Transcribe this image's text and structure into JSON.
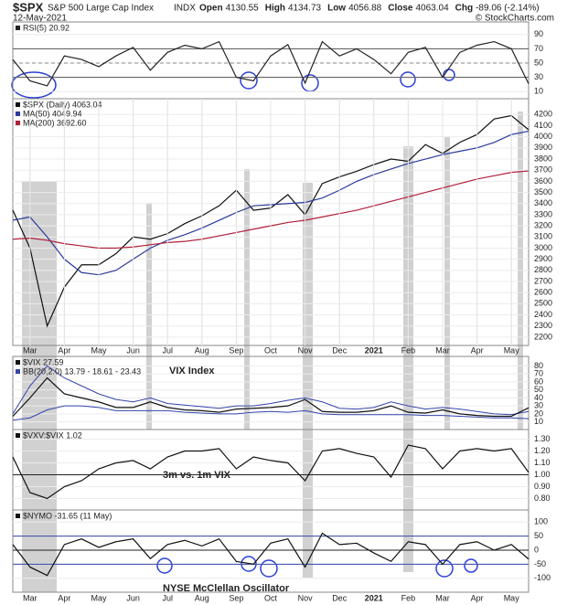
{
  "header": {
    "symbol": "$SPX",
    "name": "S&P 500 Large Cap Index",
    "exchange": "INDX",
    "date": "12-May-2021",
    "credit": "© StockCharts.com",
    "quote": [
      {
        "label": "Open",
        "value": "4130.55"
      },
      {
        "label": "High",
        "value": "4134.73"
      },
      {
        "label": "Low",
        "value": "4056.88"
      },
      {
        "label": "Close",
        "value": "4063.04"
      },
      {
        "label": "Chg",
        "value": "-89.06 (-2.14%)"
      }
    ]
  },
  "chart_data": [
    {
      "type": "line",
      "ylim": [
        0,
        100
      ],
      "yticks": [
        10,
        30,
        50,
        70,
        90
      ],
      "reference_lines": [
        {
          "value": 70,
          "color": "#555555"
        },
        {
          "value": 50,
          "color": "#888888",
          "dashed": true
        },
        {
          "value": 30,
          "color": "#555555"
        }
      ],
      "series": [
        {
          "name": "RSI(5) 20.92",
          "color": "#222222",
          "values": [
            55,
            25,
            18,
            60,
            55,
            45,
            60,
            72,
            40,
            65,
            75,
            70,
            80,
            30,
            25,
            60,
            76,
            22,
            80,
            60,
            70,
            55,
            35,
            65,
            72,
            30,
            65,
            75,
            80,
            70,
            21
          ]
        }
      ]
    },
    {
      "type": "line",
      "ylim": [
        2150,
        4260
      ],
      "yticks": [
        2200,
        2300,
        2400,
        2500,
        2600,
        2700,
        2800,
        2900,
        3000,
        3100,
        3200,
        3300,
        3400,
        3500,
        3600,
        3700,
        3800,
        3900,
        4000,
        4100,
        4200
      ],
      "categories": [
        null,
        "Mar",
        null,
        "Apr",
        null,
        "May",
        null,
        "Jun",
        null,
        "Jul",
        null,
        "Aug",
        null,
        "Sep",
        null,
        "Oct",
        null,
        "Nov",
        null,
        "Dec",
        null,
        "2021",
        null,
        "Feb",
        null,
        "Mar",
        null,
        "Apr",
        null,
        "May",
        null
      ],
      "series": [
        {
          "name": "$SPX (Daily) 4063.04",
          "color": "#111111",
          "values": [
            3340,
            3000,
            2300,
            2650,
            2850,
            2850,
            2950,
            3100,
            3080,
            3130,
            3220,
            3290,
            3380,
            3520,
            3340,
            3360,
            3480,
            3300,
            3580,
            3640,
            3690,
            3750,
            3800,
            3780,
            3930,
            3850,
            3950,
            4020,
            4160,
            4190,
            4063
          ]
        },
        {
          "name": "MA(50) 4049.94",
          "color": "#2a3a9a",
          "values": [
            3250,
            3280,
            3100,
            2900,
            2780,
            2760,
            2800,
            2900,
            3000,
            3070,
            3120,
            3180,
            3250,
            3320,
            3380,
            3390,
            3400,
            3410,
            3450,
            3520,
            3600,
            3660,
            3710,
            3760,
            3800,
            3840,
            3870,
            3900,
            3950,
            4020,
            4050
          ]
        },
        {
          "name": "MA(200) 3692.60",
          "color": "#b0203a",
          "values": [
            3080,
            3090,
            3070,
            3040,
            3020,
            3000,
            3000,
            3010,
            3030,
            3050,
            3060,
            3080,
            3110,
            3140,
            3170,
            3200,
            3230,
            3250,
            3280,
            3310,
            3340,
            3380,
            3420,
            3460,
            3500,
            3540,
            3580,
            3620,
            3650,
            3680,
            3693
          ]
        }
      ]
    },
    {
      "type": "line",
      "ylim": [
        5,
        85
      ],
      "yticks": [
        10,
        20,
        30,
        40,
        50,
        60,
        70,
        80
      ],
      "annotation": "VIX Index",
      "series": [
        {
          "name": "$VIX 27.59",
          "color": "#111111",
          "values": [
            17,
            40,
            65,
            45,
            40,
            35,
            28,
            28,
            35,
            28,
            25,
            24,
            22,
            26,
            27,
            28,
            30,
            38,
            23,
            22,
            22,
            24,
            30,
            22,
            21,
            25,
            20,
            18,
            17,
            17,
            27.6
          ]
        }
      ],
      "bands": {
        "name": "BB(20,2.0) 13.79 - 18.61 - 23.43",
        "color": "#3344aa",
        "upper": [
          20,
          55,
          80,
          65,
          55,
          45,
          38,
          35,
          40,
          33,
          31,
          29,
          27,
          30,
          30,
          33,
          37,
          40,
          35,
          27,
          26,
          28,
          35,
          30,
          26,
          28,
          26,
          23,
          20,
          19,
          23
        ],
        "lower": [
          12,
          15,
          25,
          30,
          30,
          28,
          24,
          24,
          24,
          24,
          22,
          21,
          20,
          20,
          22,
          23,
          22,
          24,
          20,
          19,
          19,
          19,
          19,
          19,
          18,
          18,
          17,
          16,
          15,
          15,
          14
        ]
      }
    },
    {
      "type": "line",
      "ylim": [
        0.75,
        1.35
      ],
      "yticks": [
        {
          "value": 0.8,
          "label": "0.80"
        },
        {
          "value": 0.9,
          "label": "0.90"
        },
        {
          "value": 1.0,
          "label": "1.00"
        },
        {
          "value": 1.1,
          "label": "1.10"
        },
        {
          "value": 1.2,
          "label": "1.20"
        },
        {
          "value": 1.3,
          "label": "1.30"
        }
      ],
      "annotation": "3m vs. 1m VIX",
      "reference_lines": [
        {
          "value": 1.0,
          "color": "#222222"
        }
      ],
      "series": [
        {
          "name": "$VXV:$VIX 1.02",
          "color": "#111111",
          "values": [
            1.15,
            0.85,
            0.8,
            0.9,
            0.95,
            1.05,
            1.1,
            1.12,
            1.05,
            1.15,
            1.2,
            1.2,
            1.22,
            1.05,
            1.15,
            1.12,
            1.1,
            0.95,
            1.2,
            1.22,
            1.18,
            1.15,
            0.98,
            1.25,
            1.22,
            1.05,
            1.2,
            1.22,
            1.2,
            1.22,
            1.02
          ]
        }
      ]
    },
    {
      "type": "line",
      "ylim": [
        -130,
        130
      ],
      "yticks": [
        -100,
        -50,
        0,
        50,
        100
      ],
      "annotation": "NYSE McClellan Oscillator",
      "categories": [
        null,
        "Mar",
        null,
        "Apr",
        null,
        "May",
        null,
        "Jun",
        null,
        "Jul",
        null,
        "Aug",
        null,
        "Sep",
        null,
        "Oct",
        null,
        "Nov",
        null,
        "Dec",
        null,
        "2021",
        null,
        "Feb",
        null,
        "Mar",
        null,
        "Apr",
        null,
        "May",
        null
      ],
      "reference_lines": [
        {
          "value": 50,
          "color": "#3344aa"
        },
        {
          "value": 0,
          "color": "#222222"
        },
        {
          "value": -50,
          "color": "#3344aa"
        }
      ],
      "series": [
        {
          "name": "$NYMO -31.65 (11 May)",
          "color": "#111111",
          "values": [
            20,
            -60,
            -90,
            20,
            40,
            10,
            30,
            40,
            -30,
            20,
            35,
            15,
            40,
            -40,
            -50,
            25,
            40,
            -60,
            60,
            20,
            25,
            -10,
            -40,
            30,
            20,
            -50,
            20,
            30,
            0,
            20,
            -31.65
          ]
        }
      ]
    }
  ]
}
